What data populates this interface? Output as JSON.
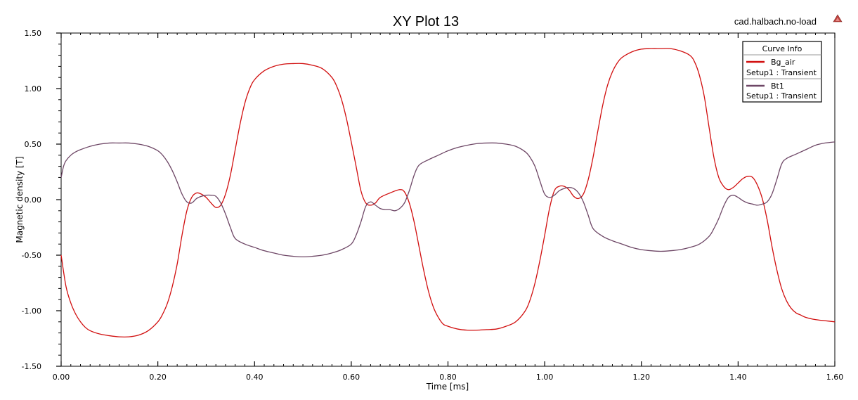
{
  "project_name": "cad.halbach.no-load",
  "legend": {
    "title": "Curve Info"
  },
  "colors": {
    "bg_air": "#d10e0e",
    "bt1": "#6e4766",
    "axis": "#000000",
    "warning_icon": "#c0413c"
  },
  "icons": {
    "corner": "warning-triangle-icon"
  },
  "chart_data": {
    "type": "line",
    "title": "XY Plot 13",
    "xlabel": "Time [ms]",
    "ylabel": "Magnetic density [T]",
    "xlim": [
      0,
      1.6
    ],
    "ylim": [
      -1.5,
      1.5
    ],
    "grid": false,
    "legend_position": "top-right",
    "x_ticks": [
      "0.00",
      "0.20",
      "0.40",
      "0.60",
      "0.80",
      "1.00",
      "1.20",
      "1.40",
      "1.60"
    ],
    "y_ticks": [
      "1.50",
      "1.00",
      "0.50",
      "0.00",
      "-0.50",
      "-1.00",
      "-1.50"
    ],
    "series": [
      {
        "name": "Bg_air",
        "setup": "Setup1 : Transient",
        "x": [
          0.0,
          0.01,
          0.02,
          0.03,
          0.04,
          0.05,
          0.06,
          0.08,
          0.1,
          0.12,
          0.14,
          0.16,
          0.18,
          0.2,
          0.21,
          0.22,
          0.23,
          0.24,
          0.25,
          0.26,
          0.27,
          0.28,
          0.29,
          0.3,
          0.31,
          0.32,
          0.33,
          0.34,
          0.35,
          0.36,
          0.37,
          0.38,
          0.39,
          0.4,
          0.42,
          0.44,
          0.46,
          0.48,
          0.5,
          0.52,
          0.54,
          0.56,
          0.57,
          0.58,
          0.59,
          0.6,
          0.61,
          0.62,
          0.63,
          0.64,
          0.65,
          0.66,
          0.68,
          0.7,
          0.71,
          0.72,
          0.73,
          0.74,
          0.75,
          0.76,
          0.77,
          0.78,
          0.79,
          0.8,
          0.82,
          0.84,
          0.86,
          0.88,
          0.9,
          0.92,
          0.94,
          0.96,
          0.97,
          0.98,
          0.99,
          1.0,
          1.01,
          1.02,
          1.03,
          1.04,
          1.05,
          1.06,
          1.07,
          1.08,
          1.09,
          1.1,
          1.11,
          1.12,
          1.13,
          1.14,
          1.15,
          1.16,
          1.18,
          1.2,
          1.22,
          1.24,
          1.26,
          1.28,
          1.3,
          1.31,
          1.32,
          1.33,
          1.34,
          1.35,
          1.36,
          1.37,
          1.38,
          1.39,
          1.4,
          1.41,
          1.42,
          1.43,
          1.44,
          1.45,
          1.46,
          1.47,
          1.48,
          1.49,
          1.5,
          1.51,
          1.52,
          1.53,
          1.54,
          1.56,
          1.58,
          1.6
        ],
        "y": [
          -0.5,
          -0.78,
          -0.93,
          -1.03,
          -1.1,
          -1.15,
          -1.18,
          -1.21,
          -1.225,
          -1.235,
          -1.235,
          -1.22,
          -1.18,
          -1.1,
          -1.03,
          -0.93,
          -0.78,
          -0.58,
          -0.32,
          -0.1,
          0.02,
          0.06,
          0.05,
          0.02,
          -0.03,
          -0.07,
          -0.05,
          0.05,
          0.22,
          0.45,
          0.68,
          0.87,
          1.0,
          1.08,
          1.16,
          1.2,
          1.22,
          1.225,
          1.225,
          1.21,
          1.18,
          1.1,
          1.02,
          0.9,
          0.73,
          0.52,
          0.3,
          0.08,
          -0.03,
          -0.05,
          -0.03,
          0.02,
          0.06,
          0.09,
          0.07,
          -0.03,
          -0.2,
          -0.42,
          -0.64,
          -0.83,
          -0.97,
          -1.06,
          -1.12,
          -1.14,
          -1.165,
          -1.175,
          -1.175,
          -1.17,
          -1.165,
          -1.14,
          -1.1,
          -1.0,
          -0.9,
          -0.75,
          -0.55,
          -0.32,
          -0.08,
          0.08,
          0.12,
          0.12,
          0.09,
          0.03,
          0.01,
          0.05,
          0.18,
          0.38,
          0.62,
          0.85,
          1.03,
          1.15,
          1.23,
          1.28,
          1.33,
          1.355,
          1.36,
          1.36,
          1.36,
          1.34,
          1.3,
          1.24,
          1.12,
          0.93,
          0.65,
          0.38,
          0.2,
          0.12,
          0.09,
          0.11,
          0.15,
          0.19,
          0.21,
          0.2,
          0.13,
          0.01,
          -0.18,
          -0.42,
          -0.63,
          -0.8,
          -0.91,
          -0.98,
          -1.02,
          -1.04,
          -1.06,
          -1.08,
          -1.09,
          -1.1
        ]
      },
      {
        "name": "Bt1",
        "setup": "Setup1 : Transient",
        "x": [
          0.0,
          0.005,
          0.01,
          0.02,
          0.03,
          0.04,
          0.06,
          0.08,
          0.1,
          0.12,
          0.14,
          0.16,
          0.18,
          0.2,
          0.21,
          0.22,
          0.23,
          0.24,
          0.25,
          0.26,
          0.27,
          0.28,
          0.29,
          0.3,
          0.31,
          0.32,
          0.33,
          0.34,
          0.35,
          0.36,
          0.38,
          0.4,
          0.42,
          0.44,
          0.46,
          0.48,
          0.5,
          0.52,
          0.54,
          0.56,
          0.58,
          0.6,
          0.61,
          0.62,
          0.63,
          0.64,
          0.65,
          0.66,
          0.67,
          0.68,
          0.69,
          0.7,
          0.71,
          0.72,
          0.73,
          0.74,
          0.76,
          0.78,
          0.8,
          0.82,
          0.84,
          0.86,
          0.88,
          0.9,
          0.92,
          0.94,
          0.96,
          0.97,
          0.98,
          0.99,
          1.0,
          1.01,
          1.02,
          1.03,
          1.04,
          1.05,
          1.06,
          1.07,
          1.08,
          1.09,
          1.1,
          1.12,
          1.14,
          1.16,
          1.18,
          1.2,
          1.22,
          1.24,
          1.26,
          1.28,
          1.3,
          1.32,
          1.34,
          1.35,
          1.36,
          1.37,
          1.38,
          1.39,
          1.4,
          1.41,
          1.42,
          1.43,
          1.44,
          1.45,
          1.46,
          1.47,
          1.48,
          1.49,
          1.5,
          1.52,
          1.54,
          1.56,
          1.58,
          1.6
        ],
        "y": [
          0.2,
          0.3,
          0.35,
          0.4,
          0.43,
          0.45,
          0.48,
          0.5,
          0.51,
          0.51,
          0.51,
          0.5,
          0.48,
          0.44,
          0.4,
          0.34,
          0.26,
          0.16,
          0.05,
          -0.02,
          -0.03,
          0.01,
          0.03,
          0.04,
          0.04,
          0.03,
          -0.03,
          -0.13,
          -0.25,
          -0.35,
          -0.4,
          -0.43,
          -0.46,
          -0.48,
          -0.5,
          -0.51,
          -0.515,
          -0.51,
          -0.5,
          -0.48,
          -0.45,
          -0.4,
          -0.32,
          -0.2,
          -0.06,
          -0.02,
          -0.05,
          -0.08,
          -0.09,
          -0.09,
          -0.1,
          -0.08,
          -0.03,
          0.08,
          0.22,
          0.31,
          0.36,
          0.4,
          0.44,
          0.47,
          0.49,
          0.505,
          0.51,
          0.51,
          0.5,
          0.48,
          0.43,
          0.38,
          0.3,
          0.17,
          0.05,
          0.02,
          0.04,
          0.08,
          0.1,
          0.11,
          0.1,
          0.06,
          -0.02,
          -0.14,
          -0.26,
          -0.33,
          -0.37,
          -0.4,
          -0.43,
          -0.45,
          -0.46,
          -0.465,
          -0.46,
          -0.45,
          -0.43,
          -0.4,
          -0.33,
          -0.26,
          -0.17,
          -0.06,
          0.02,
          0.04,
          0.02,
          -0.01,
          -0.03,
          -0.04,
          -0.05,
          -0.04,
          -0.02,
          0.05,
          0.18,
          0.32,
          0.37,
          0.41,
          0.45,
          0.49,
          0.51,
          0.52
        ]
      }
    ]
  }
}
